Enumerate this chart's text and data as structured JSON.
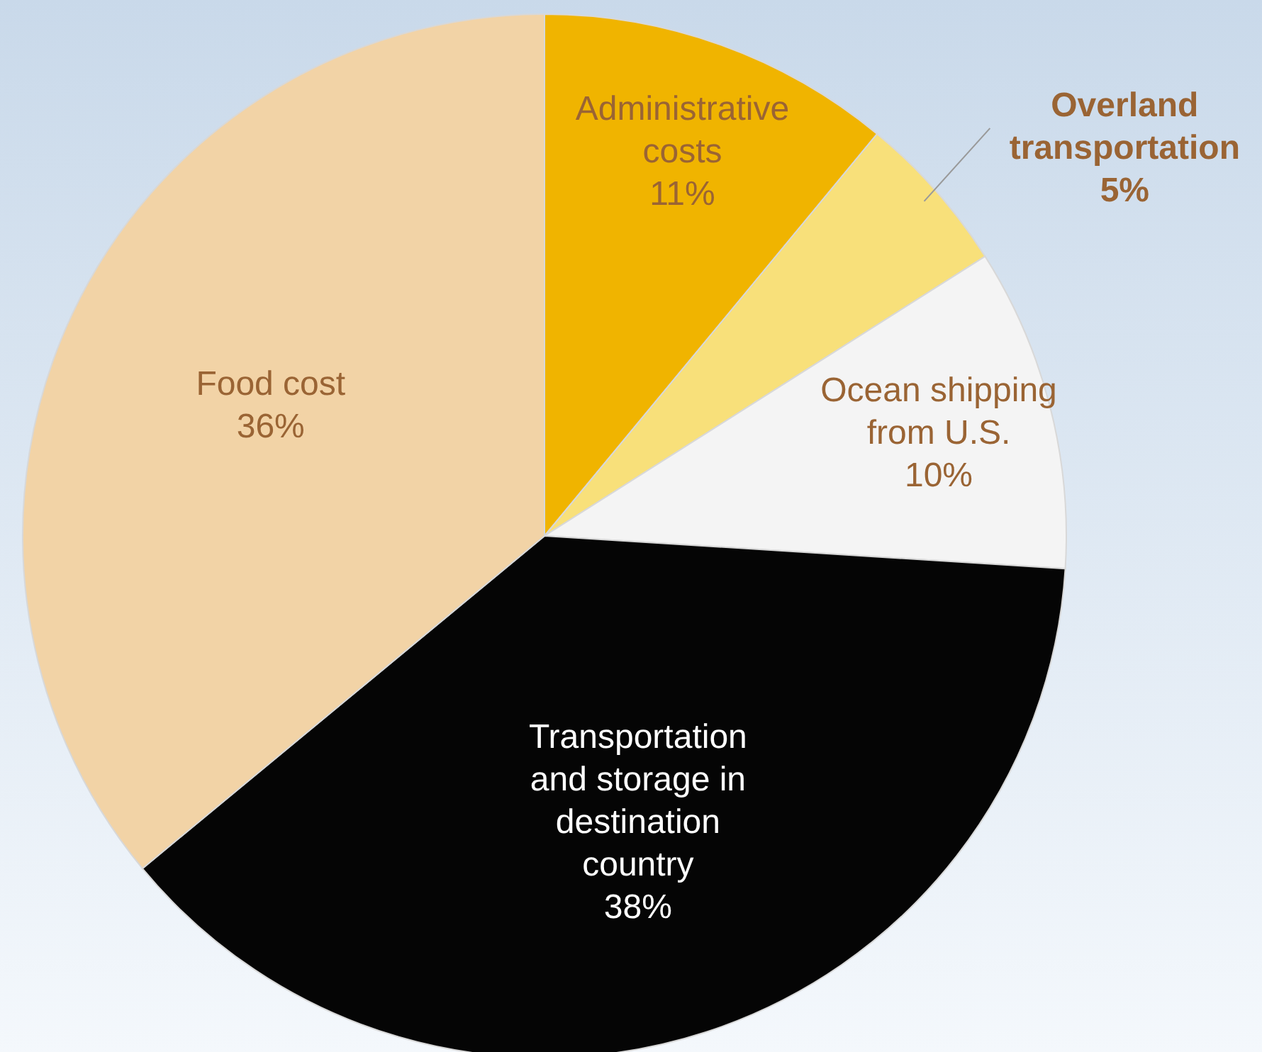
{
  "chart_data": {
    "type": "pie",
    "categories": [
      "Administrative costs",
      "Overland transportation",
      "Ocean shipping from U.S.",
      "Transportation and storage in destination country",
      "Food cost"
    ],
    "values": [
      11,
      5,
      10,
      38,
      36
    ],
    "value_labels": [
      "11%",
      "5%",
      "10%",
      "38%",
      "36%"
    ],
    "colors": [
      "#f0b400",
      "#f8e07a",
      "#f4f4f4",
      "#050505",
      "#f2d3a6"
    ]
  }
}
